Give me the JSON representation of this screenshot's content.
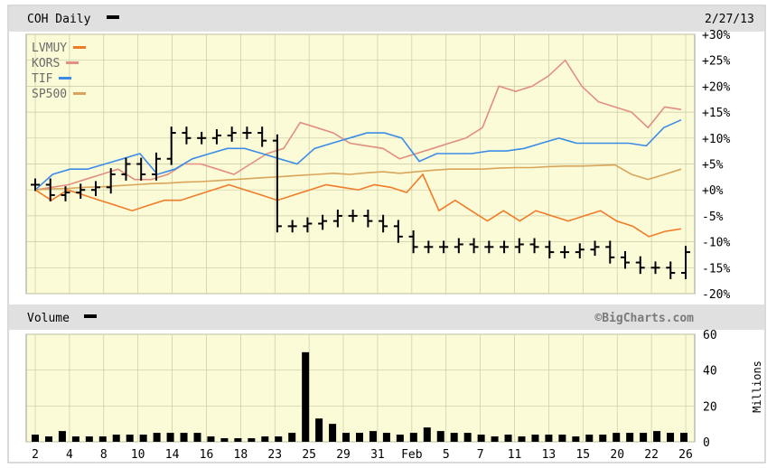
{
  "header": {
    "title": "COH Daily",
    "date": "2/27/13"
  },
  "volume_panel": {
    "title": "Volume",
    "credit": "©BigCharts.com",
    "ylabel": "Millions"
  },
  "colors": {
    "plot_bg": "#fcfbd7",
    "header_bg": "#e0e0e0",
    "grid": "#c9c9a6",
    "LVMUY": "#f07c2a",
    "KORS": "#e28e80",
    "TIF": "#3b8ce8",
    "SP500": "#d8a55b",
    "COH": "#000000"
  },
  "legend": [
    {
      "name": "LVMUY",
      "color": "#f07c2a"
    },
    {
      "name": "KORS",
      "color": "#e28e80"
    },
    {
      "name": "TIF",
      "color": "#3b8ce8"
    },
    {
      "name": "SP500",
      "color": "#d8a55b"
    }
  ],
  "chart_data": [
    {
      "type": "line",
      "title": "COH Daily",
      "ylim": [
        -20,
        30
      ],
      "y_ticks": [
        "+30%",
        "+25%",
        "+20%",
        "+15%",
        "+10%",
        "+5%",
        "+0%",
        "-5%",
        "-10%",
        "-15%",
        "-20%"
      ],
      "grid": true,
      "legend_position": "top-left",
      "x_ticks": [
        "2",
        "4",
        "8",
        "10",
        "14",
        "16",
        "18",
        "23",
        "25",
        "29",
        "31",
        "Feb",
        "5",
        "7",
        "11",
        "13",
        "15",
        "20",
        "22",
        "26"
      ],
      "series": [
        {
          "name": "COH",
          "style": "ohlc",
          "values": [
            1,
            -1,
            -0.5,
            0,
            0.5,
            3,
            5,
            3,
            6,
            11,
            10,
            10,
            10.5,
            11,
            11,
            9.5,
            -7,
            -7,
            -6.5,
            -6,
            -5,
            -5,
            -6,
            -7,
            -9,
            -11,
            -11,
            -11,
            -10.5,
            -11,
            -11,
            -11,
            -10.5,
            -11,
            -12,
            -12,
            -11.5,
            -11,
            -13,
            -14,
            -15,
            -15,
            -16,
            -12
          ]
        },
        {
          "name": "LVMUY",
          "values": [
            0,
            -2,
            0,
            -1,
            -2,
            -3,
            -4,
            -3,
            -2,
            -2,
            -1,
            0,
            1,
            0,
            -1,
            -2,
            -1,
            0,
            1,
            0.5,
            0,
            1,
            0.5,
            -0.5,
            3,
            -4,
            -2,
            -4,
            -6,
            -4,
            -6,
            -4,
            -5,
            -6,
            -5,
            -4,
            -6,
            -7,
            -9,
            -8,
            -7.5
          ]
        },
        {
          "name": "KORS",
          "values": [
            0,
            0.5,
            1,
            2,
            3,
            4,
            2,
            2,
            3,
            5,
            5,
            4,
            3,
            5,
            7,
            8,
            13,
            12,
            11,
            9,
            8.5,
            8,
            6,
            7,
            8,
            9,
            10,
            12,
            20,
            19,
            20,
            22,
            25,
            20,
            17,
            16,
            15,
            12,
            16,
            15.5
          ]
        },
        {
          "name": "TIF",
          "values": [
            0,
            3,
            4,
            4,
            5,
            6,
            7,
            3,
            4,
            6,
            7,
            8,
            8,
            7,
            6,
            5,
            8,
            9,
            10,
            11,
            11,
            10,
            5.5,
            7,
            7,
            7,
            7.5,
            7.5,
            8,
            9,
            10,
            9,
            9,
            9,
            9,
            8.5,
            12,
            13.5
          ]
        },
        {
          "name": "SP500",
          "values": [
            0,
            0.2,
            0.3,
            0.5,
            0.6,
            0.8,
            1,
            1.2,
            1.3,
            1.5,
            1.6,
            1.8,
            2,
            2.2,
            2.4,
            2.6,
            2.8,
            3,
            3.2,
            3,
            3.3,
            3.5,
            3.2,
            3.5,
            3.8,
            4,
            4,
            4,
            4.2,
            4.3,
            4.3,
            4.5,
            4.6,
            4.6,
            4.7,
            4.8,
            3,
            2,
            3,
            4
          ]
        }
      ]
    },
    {
      "type": "bar",
      "title": "Volume",
      "ylabel": "Millions",
      "ylim": [
        0,
        60
      ],
      "y_ticks": [
        "60",
        "40",
        "20",
        "0"
      ],
      "x_ticks": [
        "2",
        "4",
        "8",
        "10",
        "14",
        "16",
        "18",
        "23",
        "25",
        "29",
        "31",
        "Feb",
        "5",
        "7",
        "11",
        "13",
        "15",
        "20",
        "22",
        "26"
      ],
      "series": [
        {
          "name": "Volume",
          "values": [
            4,
            3,
            6,
            3,
            3,
            3,
            4,
            4,
            4,
            5,
            5,
            5,
            5,
            3,
            2,
            2,
            2,
            3,
            3,
            5,
            50,
            13,
            10,
            5,
            5,
            6,
            5,
            4,
            5,
            8,
            6,
            5,
            5,
            4,
            3,
            4,
            3,
            4,
            4,
            4,
            3,
            4,
            4,
            5,
            5,
            5,
            6,
            5,
            5
          ]
        }
      ]
    }
  ]
}
